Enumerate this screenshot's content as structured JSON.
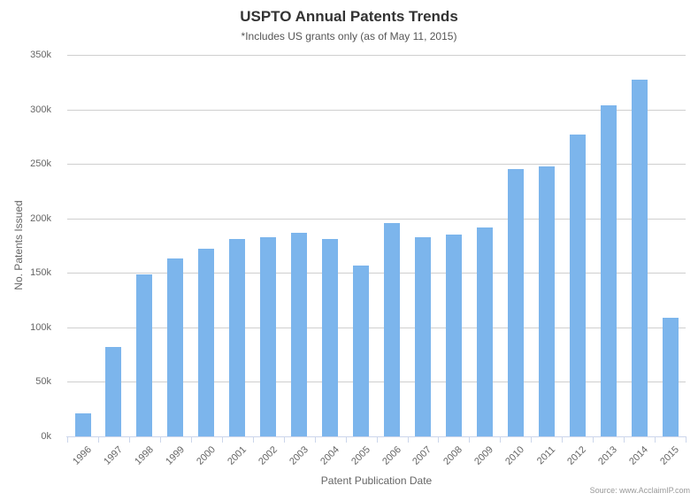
{
  "chart_data": {
    "type": "bar",
    "title": "USPTO Annual Patents Trends",
    "subtitle": "*Includes US grants only (as of May 11, 2015)",
    "xlabel": "Patent Publication Date",
    "ylabel": "No. Patents Issued",
    "categories": [
      "1996",
      "1997",
      "1998",
      "1999",
      "2000",
      "2001",
      "2002",
      "2003",
      "2004",
      "2005",
      "2006",
      "2007",
      "2008",
      "2009",
      "2010",
      "2011",
      "2012",
      "2013",
      "2014",
      "2015"
    ],
    "values": [
      21000,
      82000,
      149000,
      163000,
      172000,
      181000,
      183000,
      187000,
      181000,
      157000,
      196000,
      183000,
      185000,
      192000,
      245000,
      248000,
      277000,
      304000,
      327000,
      109000
    ],
    "ylim": [
      0,
      350000
    ],
    "ytick_step": 50000,
    "ytick_labels": [
      "0k",
      "50k",
      "100k",
      "150k",
      "200k",
      "250k",
      "300k",
      "350k"
    ],
    "grid": true,
    "legend": false,
    "source": "Source: www.AcclaimIP.com",
    "colors": {
      "bar_fill": "#7cb5ec",
      "gridline": "#cfcfcf",
      "axis_line": "#ccd6eb",
      "tick_mark": "#ccd6eb",
      "title_text": "#333333",
      "subtitle_text": "#555555",
      "axis_label_text": "#666666",
      "source_text": "#999999"
    }
  }
}
